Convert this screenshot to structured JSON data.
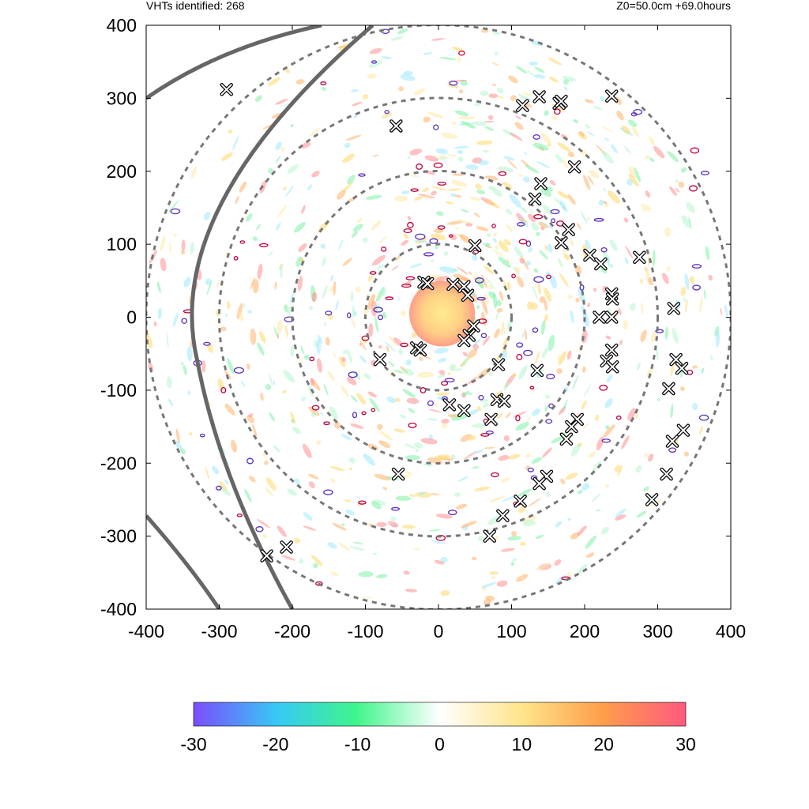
{
  "header": {
    "left_text": "VHTs identified: 268",
    "right_text": "Z0=50.0cm  +69.0hours"
  },
  "chart_data": {
    "type": "scatter",
    "title": "",
    "xlabel": "",
    "ylabel": "",
    "xlim": [
      -400,
      400
    ],
    "ylim": [
      -400,
      400
    ],
    "x_ticks": [
      "-400",
      "-300",
      "-200",
      "-100",
      "0",
      "100",
      "200",
      "300",
      "400"
    ],
    "y_ticks": [
      "400",
      "300",
      "200",
      "100",
      "0",
      "-100",
      "-200",
      "-300",
      "-400"
    ],
    "grid": false,
    "reference_circles_radii": [
      100,
      200,
      300,
      400
    ],
    "colorbar": {
      "range": [
        -30,
        30
      ],
      "ticks": [
        "-30",
        "-20",
        "-10",
        "0",
        "10",
        "20",
        "30"
      ],
      "colors": [
        "#7b4dff",
        "#37c9f5",
        "#3ff58c",
        "#ffffff",
        "#ffe48a",
        "#ff9e4a",
        "#ff5a7e"
      ]
    },
    "vht_markers": [
      [
        -290,
        312
      ],
      [
        -58,
        262
      ],
      [
        115,
        290
      ],
      [
        138,
        302
      ],
      [
        165,
        293
      ],
      [
        168,
        296
      ],
      [
        237,
        303
      ],
      [
        186,
        206
      ],
      [
        140,
        183
      ],
      [
        132,
        162
      ],
      [
        178,
        120
      ],
      [
        168,
        102
      ],
      [
        50,
        98
      ],
      [
        207,
        85
      ],
      [
        222,
        73
      ],
      [
        275,
        82
      ],
      [
        -20,
        48
      ],
      [
        -15,
        46
      ],
      [
        20,
        45
      ],
      [
        35,
        42
      ],
      [
        40,
        30
      ],
      [
        237,
        32
      ],
      [
        238,
        25
      ],
      [
        322,
        12
      ],
      [
        220,
        0
      ],
      [
        237,
        0
      ],
      [
        48,
        -12
      ],
      [
        42,
        -25
      ],
      [
        35,
        -32
      ],
      [
        -30,
        -42
      ],
      [
        -25,
        -45
      ],
      [
        -80,
        -58
      ],
      [
        237,
        -45
      ],
      [
        230,
        -60
      ],
      [
        238,
        -68
      ],
      [
        82,
        -65
      ],
      [
        135,
        -73
      ],
      [
        325,
        -58
      ],
      [
        333,
        -70
      ],
      [
        315,
        -98
      ],
      [
        80,
        -113
      ],
      [
        90,
        -115
      ],
      [
        15,
        -120
      ],
      [
        35,
        -128
      ],
      [
        72,
        -140
      ],
      [
        190,
        -140
      ],
      [
        182,
        -150
      ],
      [
        175,
        -167
      ],
      [
        335,
        -155
      ],
      [
        320,
        -170
      ],
      [
        -55,
        -215
      ],
      [
        148,
        -218
      ],
      [
        138,
        -228
      ],
      [
        112,
        -252
      ],
      [
        312,
        -215
      ],
      [
        292,
        -250
      ],
      [
        88,
        -272
      ],
      [
        70,
        -300
      ],
      [
        -208,
        -315
      ],
      [
        -235,
        -327
      ]
    ],
    "curved_tracks": 3
  }
}
